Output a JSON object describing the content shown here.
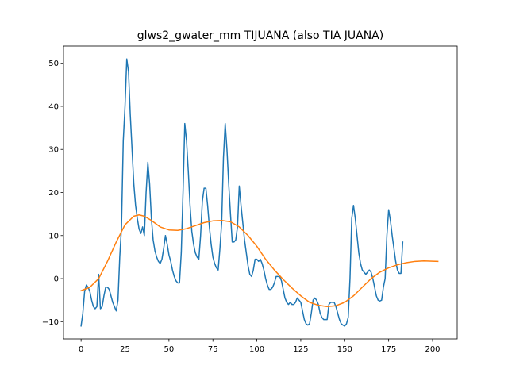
{
  "chart_data": {
    "type": "line",
    "title": "glws2_gwater_mm TIJUANA (also TIA JUANA)",
    "xlabel": "",
    "ylabel": "",
    "xlim": [
      -10,
      214
    ],
    "ylim": [
      -14,
      54
    ],
    "xticks": [
      0,
      25,
      50,
      75,
      100,
      125,
      150,
      175,
      200
    ],
    "yticks": [
      -10,
      0,
      10,
      20,
      30,
      40,
      50
    ],
    "grid": false,
    "series": [
      {
        "color": "#1f77b4",
        "points": [
          [
            0,
            -11
          ],
          [
            1,
            -8
          ],
          [
            2,
            -3
          ],
          [
            3,
            -1.5
          ],
          [
            4,
            -2
          ],
          [
            5,
            -3
          ],
          [
            6,
            -5
          ],
          [
            7,
            -6.5
          ],
          [
            8,
            -7
          ],
          [
            9,
            -6.5
          ],
          [
            10,
            1
          ],
          [
            11,
            -7
          ],
          [
            12,
            -6.5
          ],
          [
            13,
            -4
          ],
          [
            14,
            -2
          ],
          [
            15,
            -2
          ],
          [
            16,
            -2.5
          ],
          [
            17,
            -4
          ],
          [
            18,
            -5.5
          ],
          [
            19,
            -6.5
          ],
          [
            20,
            -7.5
          ],
          [
            21,
            -5
          ],
          [
            22,
            5
          ],
          [
            23,
            12
          ],
          [
            24,
            32
          ],
          [
            25,
            40
          ],
          [
            26,
            51
          ],
          [
            27,
            48
          ],
          [
            28,
            38
          ],
          [
            29,
            30
          ],
          [
            30,
            22
          ],
          [
            31,
            17
          ],
          [
            32,
            14
          ],
          [
            33,
            11.5
          ],
          [
            34,
            10.5
          ],
          [
            35,
            12
          ],
          [
            36,
            10
          ],
          [
            37,
            20
          ],
          [
            38,
            27
          ],
          [
            39,
            22
          ],
          [
            40,
            14
          ],
          [
            41,
            9
          ],
          [
            42,
            6.5
          ],
          [
            43,
            5
          ],
          [
            44,
            4
          ],
          [
            45,
            3.5
          ],
          [
            46,
            4.5
          ],
          [
            47,
            7
          ],
          [
            48,
            10
          ],
          [
            49,
            8
          ],
          [
            50,
            5.5
          ],
          [
            51,
            4
          ],
          [
            52,
            2
          ],
          [
            53,
            0.5
          ],
          [
            54,
            -0.5
          ],
          [
            55,
            -1
          ],
          [
            56,
            -1
          ],
          [
            57,
            6
          ],
          [
            58,
            20
          ],
          [
            59,
            36
          ],
          [
            60,
            32
          ],
          [
            61,
            25
          ],
          [
            62,
            17
          ],
          [
            63,
            11
          ],
          [
            64,
            8
          ],
          [
            65,
            6
          ],
          [
            66,
            5
          ],
          [
            67,
            4.5
          ],
          [
            68,
            10
          ],
          [
            69,
            18
          ],
          [
            70,
            21
          ],
          [
            71,
            21
          ],
          [
            72,
            17
          ],
          [
            73,
            12
          ],
          [
            74,
            8
          ],
          [
            75,
            5
          ],
          [
            76,
            3.5
          ],
          [
            77,
            2.5
          ],
          [
            78,
            2
          ],
          [
            79,
            7
          ],
          [
            80,
            13
          ],
          [
            81,
            28
          ],
          [
            82,
            36
          ],
          [
            83,
            30
          ],
          [
            84,
            22
          ],
          [
            85,
            15
          ],
          [
            86,
            8.5
          ],
          [
            87,
            8.5
          ],
          [
            88,
            9
          ],
          [
            89,
            12
          ],
          [
            90,
            21.5
          ],
          [
            91,
            17
          ],
          [
            92,
            13
          ],
          [
            93,
            9
          ],
          [
            94,
            6
          ],
          [
            95,
            3
          ],
          [
            96,
            1
          ],
          [
            97,
            0.5
          ],
          [
            98,
            2
          ],
          [
            99,
            4.5
          ],
          [
            100,
            4.5
          ],
          [
            101,
            4
          ],
          [
            102,
            4.5
          ],
          [
            103,
            3.5
          ],
          [
            104,
            2
          ],
          [
            105,
            0
          ],
          [
            106,
            -1.5
          ],
          [
            107,
            -2.5
          ],
          [
            108,
            -2.5
          ],
          [
            109,
            -2
          ],
          [
            110,
            -1
          ],
          [
            111,
            0.5
          ],
          [
            112,
            0.5
          ],
          [
            113,
            0.5
          ],
          [
            114,
            -0.5
          ],
          [
            115,
            -2.5
          ],
          [
            116,
            -4.5
          ],
          [
            117,
            -5.5
          ],
          [
            118,
            -6
          ],
          [
            119,
            -5.5
          ],
          [
            120,
            -6
          ],
          [
            121,
            -6
          ],
          [
            122,
            -5.5
          ],
          [
            123,
            -4.5
          ],
          [
            124,
            -5
          ],
          [
            125,
            -5.5
          ],
          [
            126,
            -7.5
          ],
          [
            127,
            -9.5
          ],
          [
            128,
            -10.5
          ],
          [
            129,
            -10.8
          ],
          [
            130,
            -10.5
          ],
          [
            131,
            -8
          ],
          [
            132,
            -5
          ],
          [
            133,
            -4.5
          ],
          [
            134,
            -5
          ],
          [
            135,
            -6
          ],
          [
            136,
            -8
          ],
          [
            137,
            -9
          ],
          [
            138,
            -9.5
          ],
          [
            139,
            -9.5
          ],
          [
            140,
            -9.5
          ],
          [
            141,
            -6
          ],
          [
            142,
            -5.5
          ],
          [
            143,
            -5.5
          ],
          [
            144,
            -5.5
          ],
          [
            145,
            -6.5
          ],
          [
            146,
            -8
          ],
          [
            147,
            -9.5
          ],
          [
            148,
            -10.5
          ],
          [
            149,
            -10.8
          ],
          [
            150,
            -11
          ],
          [
            151,
            -10.5
          ],
          [
            152,
            -9
          ],
          [
            153,
            0
          ],
          [
            154,
            14
          ],
          [
            155,
            17
          ],
          [
            156,
            14
          ],
          [
            157,
            10
          ],
          [
            158,
            6
          ],
          [
            159,
            3.5
          ],
          [
            160,
            2
          ],
          [
            161,
            1.5
          ],
          [
            162,
            1
          ],
          [
            163,
            1.5
          ],
          [
            164,
            2
          ],
          [
            165,
            1.5
          ],
          [
            166,
            0
          ],
          [
            167,
            -2
          ],
          [
            168,
            -4
          ],
          [
            169,
            -5
          ],
          [
            170,
            -5.2
          ],
          [
            171,
            -5
          ],
          [
            172,
            -2
          ],
          [
            173,
            0
          ],
          [
            174,
            10
          ],
          [
            175,
            16
          ],
          [
            176,
            13.5
          ],
          [
            177,
            10
          ],
          [
            178,
            7
          ],
          [
            179,
            4
          ],
          [
            180,
            2
          ],
          [
            181,
            1.2
          ],
          [
            182,
            1.2
          ],
          [
            183,
            8.5
          ]
        ]
      },
      {
        "color": "#ff7f0e",
        "points": [
          [
            0,
            -2.8
          ],
          [
            5,
            -2
          ],
          [
            10,
            0
          ],
          [
            15,
            4
          ],
          [
            20,
            8.5
          ],
          [
            25,
            12.5
          ],
          [
            30,
            14.5
          ],
          [
            33,
            14.8
          ],
          [
            36,
            14.5
          ],
          [
            40,
            13.5
          ],
          [
            45,
            12
          ],
          [
            50,
            11.3
          ],
          [
            55,
            11.2
          ],
          [
            60,
            11.6
          ],
          [
            65,
            12.3
          ],
          [
            70,
            13
          ],
          [
            75,
            13.4
          ],
          [
            80,
            13.5
          ],
          [
            85,
            13.2
          ],
          [
            90,
            12
          ],
          [
            95,
            10
          ],
          [
            100,
            7.5
          ],
          [
            105,
            4.5
          ],
          [
            110,
            2
          ],
          [
            115,
            -0.2
          ],
          [
            120,
            -2.2
          ],
          [
            125,
            -4
          ],
          [
            130,
            -5.5
          ],
          [
            135,
            -6.2
          ],
          [
            140,
            -6.5
          ],
          [
            145,
            -6.3
          ],
          [
            150,
            -5.5
          ],
          [
            155,
            -4
          ],
          [
            160,
            -2
          ],
          [
            165,
            0
          ],
          [
            170,
            1.5
          ],
          [
            175,
            2.5
          ],
          [
            180,
            3.2
          ],
          [
            185,
            3.7
          ],
          [
            190,
            4
          ],
          [
            195,
            4.1
          ],
          [
            203,
            4
          ]
        ]
      }
    ]
  }
}
